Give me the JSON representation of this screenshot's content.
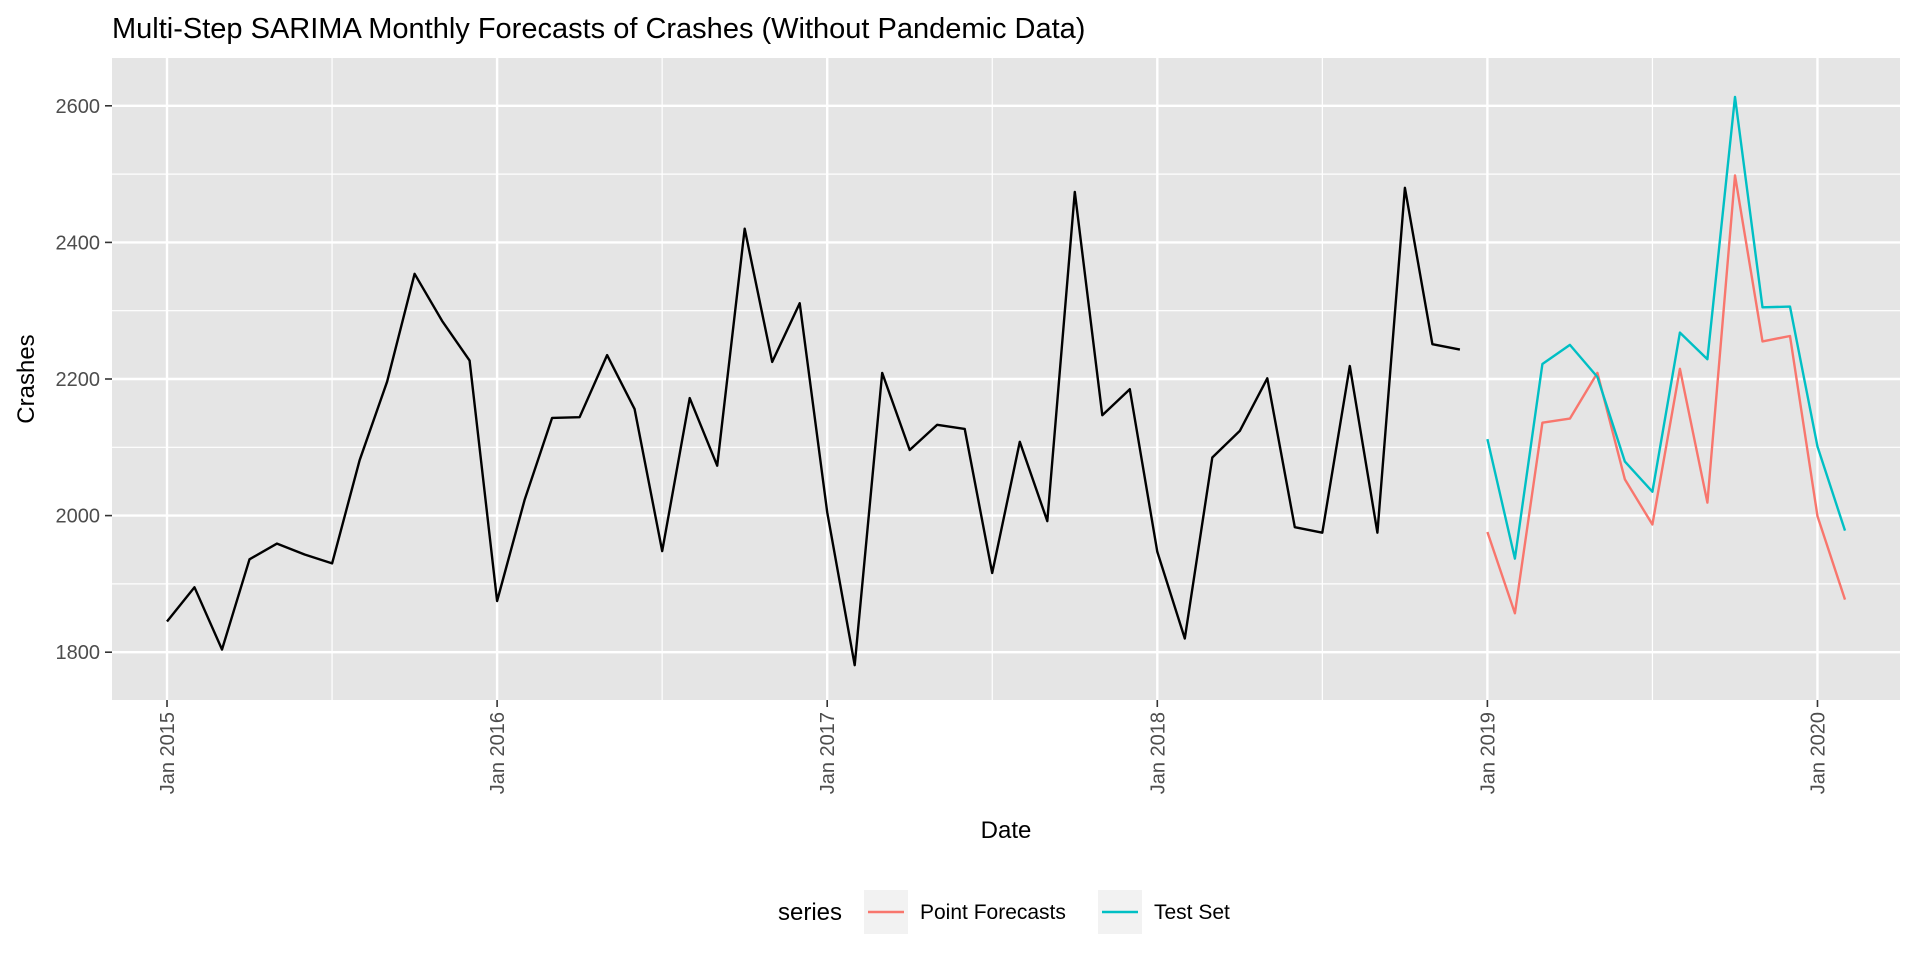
{
  "chart_data": {
    "type": "line",
    "title": "Multi-Step SARIMA Monthly Forecasts of Crashes (Without Pandemic Data)",
    "xlabel": "Date",
    "ylabel": "Crashes",
    "x_ticks": [
      "Jan 2015",
      "Jan 2016",
      "Jan 2017",
      "Jan 2018",
      "Jan 2019",
      "Jan 2020"
    ],
    "y_ticks": [
      1800,
      2000,
      2200,
      2400,
      2600
    ],
    "ylim": [
      1730,
      2670
    ],
    "xlim": [
      "2014-11",
      "2020-04"
    ],
    "grid": true,
    "legend_position": "bottom",
    "legend_title": "series",
    "background_color": "#e5e5e5",
    "grid_color": "#ffffff",
    "series": [
      {
        "color": "#000000",
        "start": "2015-01",
        "values": [
          1845,
          1895,
          1804,
          1936,
          1959,
          1943,
          1930,
          2081,
          2196,
          2354,
          2285,
          2227,
          1875,
          2023,
          2143,
          2144,
          2235,
          2156,
          1948,
          2172,
          2073,
          2420,
          2225,
          2311,
          2005,
          1781,
          2209,
          2096,
          2133,
          2127,
          1916,
          2108,
          1992,
          2474,
          2147,
          2185,
          1947,
          1820,
          2085,
          2124,
          2201,
          1983,
          1975,
          2219,
          1975,
          2480,
          2251,
          2243
        ]
      },
      {
        "name": "Point Forecasts",
        "color": "#f8766d",
        "start": "2019-01",
        "values": [
          1976,
          1857,
          2136,
          2142,
          2209,
          2053,
          1987,
          2215,
          2019,
          2498,
          2255,
          2263,
          1999,
          1877
        ]
      },
      {
        "name": "Test Set",
        "color": "#00bfc4",
        "start": "2019-01",
        "values": [
          2112,
          1937,
          2222,
          2250,
          2203,
          2079,
          2035,
          2268,
          2229,
          2613,
          2305,
          2306,
          2101,
          1978
        ]
      }
    ]
  }
}
